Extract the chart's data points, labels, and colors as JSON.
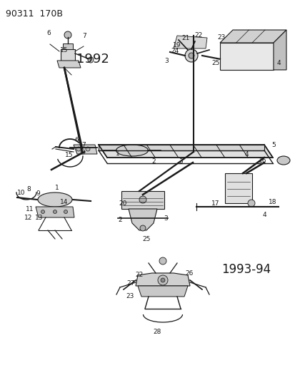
{
  "title": "90311  170B",
  "year1": "1992",
  "year2": "1993-94",
  "bg_color": "#ffffff",
  "lc": "#1a1a1a",
  "tc": "#1a1a1a",
  "fig_width": 4.14,
  "fig_height": 5.33,
  "dpi": 100
}
